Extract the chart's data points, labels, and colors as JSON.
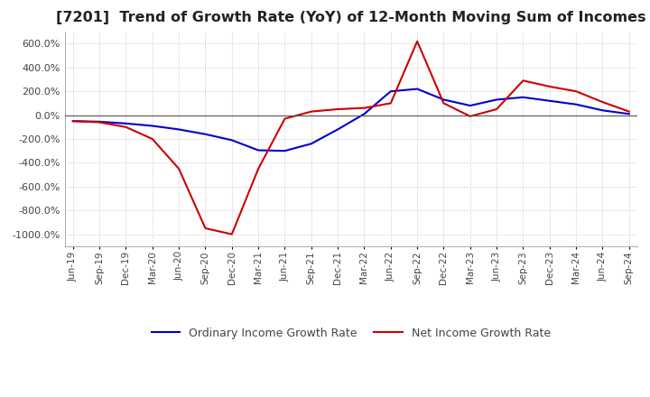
{
  "title": "[7201]  Trend of Growth Rate (YoY) of 12-Month Moving Sum of Incomes",
  "title_fontsize": 11.5,
  "ylim": [
    -1100,
    700
  ],
  "yticks": [
    -1000,
    -800,
    -600,
    -400,
    -200,
    0,
    200,
    400,
    600
  ],
  "background_color": "#ffffff",
  "grid_color": "#bbbbbb",
  "ordinary_color": "#0000cc",
  "net_color": "#cc0000",
  "legend_labels": [
    "Ordinary Income Growth Rate",
    "Net Income Growth Rate"
  ],
  "x_labels": [
    "Jun-19",
    "Sep-19",
    "Dec-19",
    "Mar-20",
    "Jun-20",
    "Sep-20",
    "Dec-20",
    "Mar-21",
    "Jun-21",
    "Sep-21",
    "Dec-21",
    "Mar-22",
    "Jun-22",
    "Sep-22",
    "Dec-22",
    "Mar-23",
    "Jun-23",
    "Sep-23",
    "Dec-23",
    "Mar-24",
    "Jun-24",
    "Sep-24"
  ],
  "ordinary_income_growth": [
    -50,
    -55,
    -70,
    -90,
    -120,
    -160,
    -210,
    -295,
    -300,
    -240,
    -120,
    10,
    200,
    220,
    130,
    80,
    130,
    150,
    120,
    90,
    40,
    10
  ],
  "net_income_growth": [
    -50,
    -60,
    -100,
    -200,
    -450,
    -950,
    -1000,
    -450,
    -30,
    30,
    50,
    60,
    100,
    620,
    100,
    -10,
    50,
    290,
    240,
    200,
    110,
    30
  ]
}
